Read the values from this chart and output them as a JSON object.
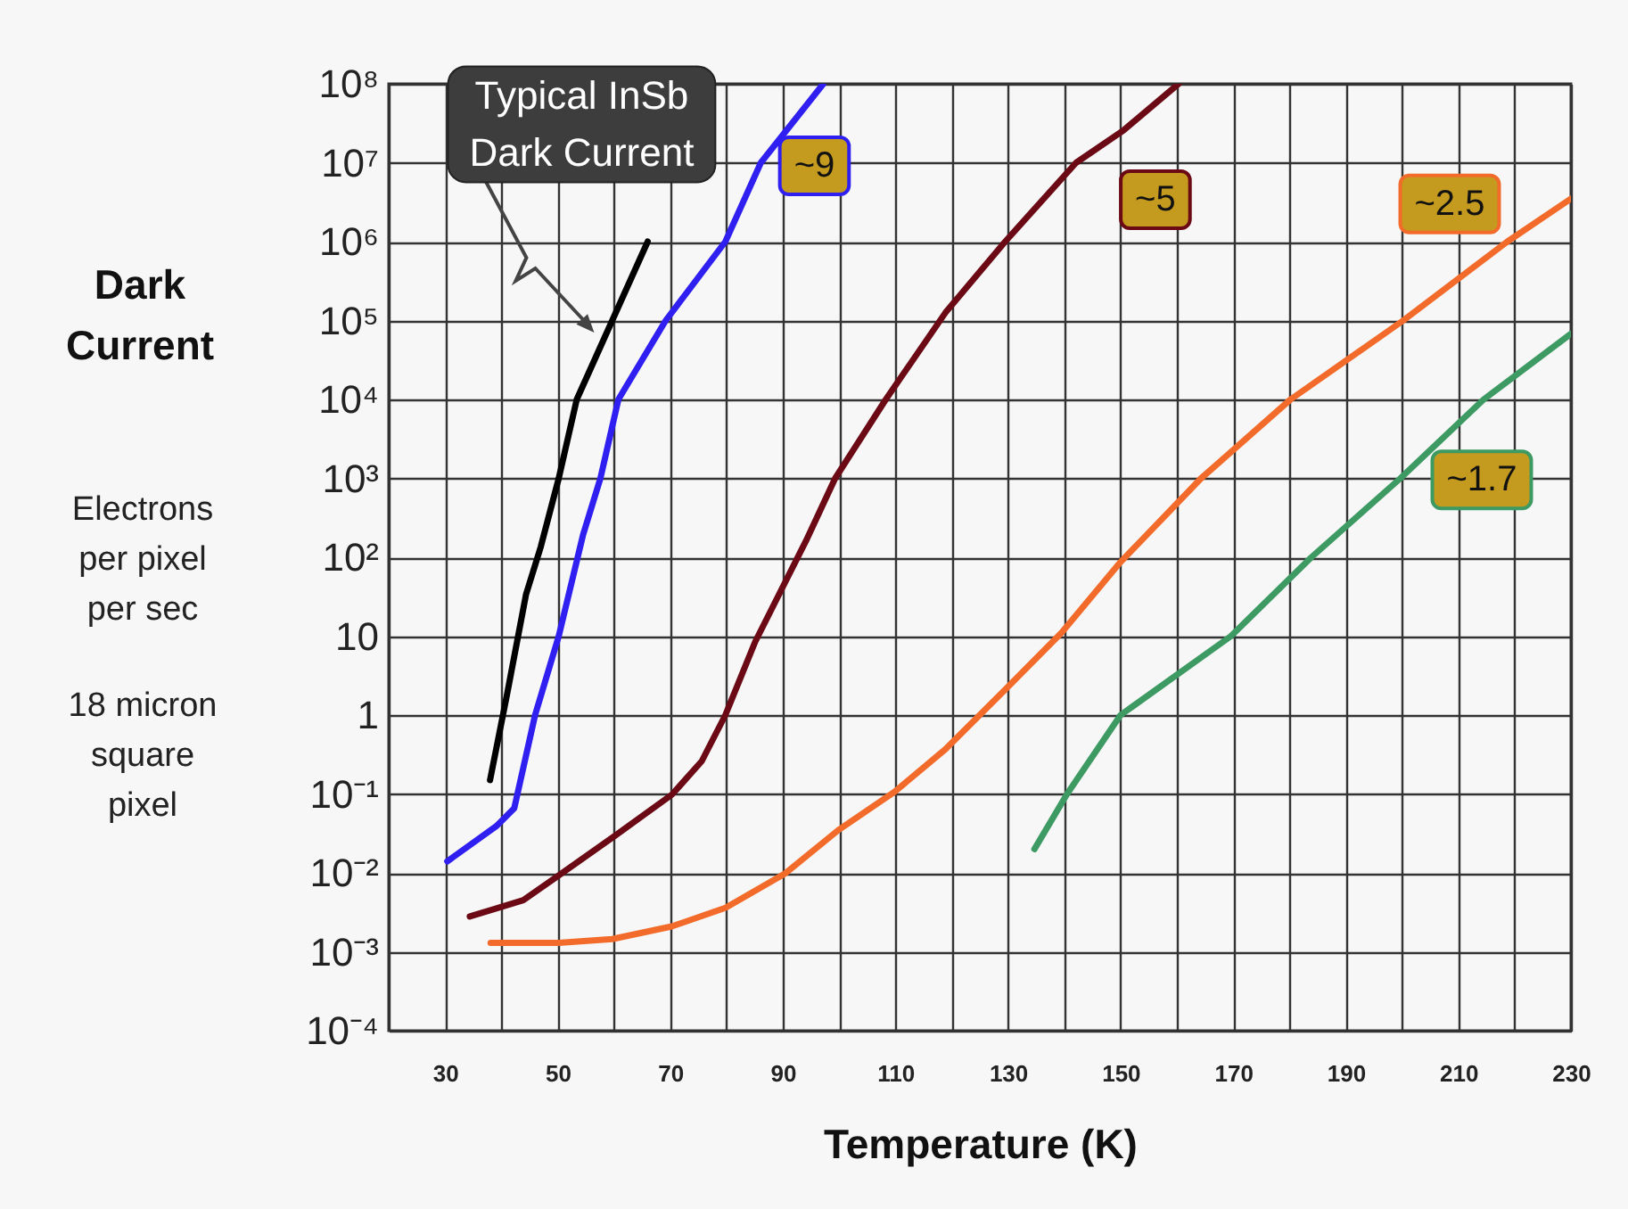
{
  "chart_data": {
    "type": "line",
    "ylabel": "Dark\nCurrent",
    "xlabel": "Temperature (K)",
    "log": "y",
    "grid": true,
    "xlim": [
      20,
      230
    ],
    "xticks": [
      {
        "value": 20,
        "label": null
      },
      30,
      {
        "value": 40,
        "label": null
      },
      50,
      {
        "value": 60,
        "label": null
      },
      70,
      {
        "value": 80,
        "label": null
      },
      90,
      {
        "value": 100,
        "label": null
      },
      110,
      {
        "value": 120,
        "label": null
      },
      130,
      {
        "value": 140,
        "label": null
      },
      150,
      {
        "value": 160,
        "label": null
      },
      170,
      {
        "value": 180,
        "label": null
      },
      190,
      {
        "value": 200,
        "label": null
      },
      210,
      {
        "value": 220,
        "label": null
      },
      230
    ],
    "ylim": [
      0.0001,
      100000000
    ],
    "yticks": [
      {
        "value": 0.0001,
        "label": "10⁻⁴"
      },
      {
        "value": 0.001,
        "label": "10⁻³"
      },
      {
        "value": 0.01,
        "label": "10⁻²"
      },
      {
        "value": 0.1,
        "label": "10⁻¹"
      },
      1,
      10,
      {
        "value": 100,
        "label": "10²"
      },
      {
        "value": 1000,
        "label": "10³"
      },
      {
        "value": 10000,
        "label": "10⁴"
      },
      {
        "value": 100000,
        "label": "10⁵"
      },
      {
        "value": 1000000,
        "label": "10⁶"
      },
      {
        "value": 10000000,
        "label": "10⁷"
      },
      {
        "value": 100000000,
        "label": "10⁸"
      }
    ],
    "series": [
      {
        "name": "Typical InSb\nDark Current",
        "color": "#000000",
        "x": [
          38,
          41,
          44.4,
          47,
          50.2,
          53.4,
          59.7,
          66
        ],
        "values": [
          0.15,
          1.8,
          34,
          135,
          1000,
          10000,
          100000,
          1000000
        ]
      },
      {
        "name": "~9",
        "color": "#2f1ff0",
        "x": [
          30.4,
          39.1,
          42.3,
          46,
          50.2,
          54.5,
          57.6,
          60.8,
          69.2,
          79.8,
          86.1,
          97.2
        ],
        "values": [
          0.014,
          0.039,
          0.066,
          1,
          10,
          190,
          1000,
          10000,
          100000,
          1000000,
          10000000,
          100000000
        ]
      },
      {
        "name": "~5",
        "color": "#6b0a14",
        "x": [
          34.4,
          43.9,
          50.2,
          60.3,
          70.3,
          75.6,
          79.8,
          85.1,
          90.4,
          94.1,
          99.3,
          108.3,
          118.9,
          129.5,
          142.1,
          150.6,
          160.3
        ],
        "values": [
          0.0028,
          0.0045,
          0.0093,
          0.03,
          0.098,
          0.26,
          1,
          8.5,
          48,
          160,
          1000,
          10000,
          126000,
          1000000,
          10000000,
          26000000,
          100000000
        ]
      },
      {
        "name": "~2.5",
        "color": "#f26b2a",
        "x": [
          38.1,
          50.2,
          59.7,
          70.3,
          79.8,
          90.4,
          99.9,
          109.9,
          118.9,
          129.5,
          139.5,
          150,
          164.3,
          180.2,
          200.2,
          218.7,
          230
        ],
        "values": [
          0.0013,
          0.0013,
          0.00145,
          0.0021,
          0.0036,
          0.0098,
          0.035,
          0.107,
          0.37,
          2.1,
          11,
          87,
          1000,
          10000,
          100000,
          1000000,
          3500000
        ]
      },
      {
        "name": "~1.7",
        "color": "#3d9a62",
        "x": [
          134.7,
          140.5,
          150,
          169.6,
          183.9,
          199.7,
          214.5,
          230
        ],
        "values": [
          0.02,
          0.1,
          1,
          10,
          100,
          1000,
          10000,
          68000
        ]
      }
    ],
    "annotations": [
      "Electrons\nper pixel\nper sec",
      "18 micron\nsquare\npixel"
    ]
  }
}
